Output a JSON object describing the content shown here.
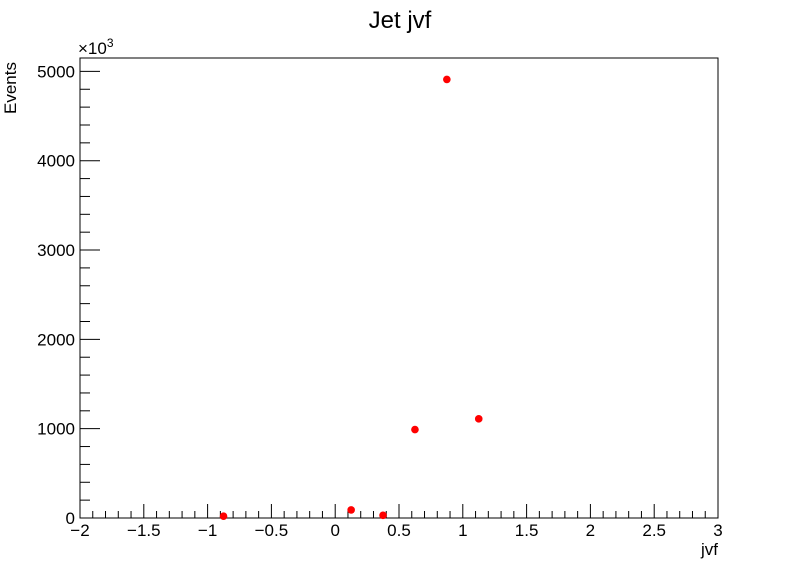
{
  "chart_data": {
    "type": "scatter",
    "title": "Jet jvf",
    "xlabel": "jvf",
    "ylabel": "Events",
    "y_multiplier": "×10",
    "y_multiplier_exp": "3",
    "xlim": [
      -2,
      3
    ],
    "ylim": [
      0,
      5150
    ],
    "x_ticks": [
      -2,
      -1.5,
      -1,
      -0.5,
      0,
      0.5,
      1,
      1.5,
      2,
      2.5,
      3
    ],
    "x_tick_labels": [
      "−2",
      "−1.5",
      "−1",
      "−0.5",
      "0",
      "0.5",
      "1",
      "1.5",
      "2",
      "2.5",
      "3"
    ],
    "y_ticks": [
      0,
      1000,
      2000,
      3000,
      4000,
      5000
    ],
    "y_tick_labels": [
      "0",
      "1000",
      "2000",
      "3000",
      "4000",
      "5000"
    ],
    "x_minor_step": 0.1,
    "y_minor_step": 200,
    "grid": false,
    "marker_color": "#ff0000",
    "x": [
      -0.875,
      0.125,
      0.375,
      0.625,
      0.875,
      1.125
    ],
    "y": [
      20,
      90,
      30,
      990,
      4910,
      1110
    ]
  }
}
